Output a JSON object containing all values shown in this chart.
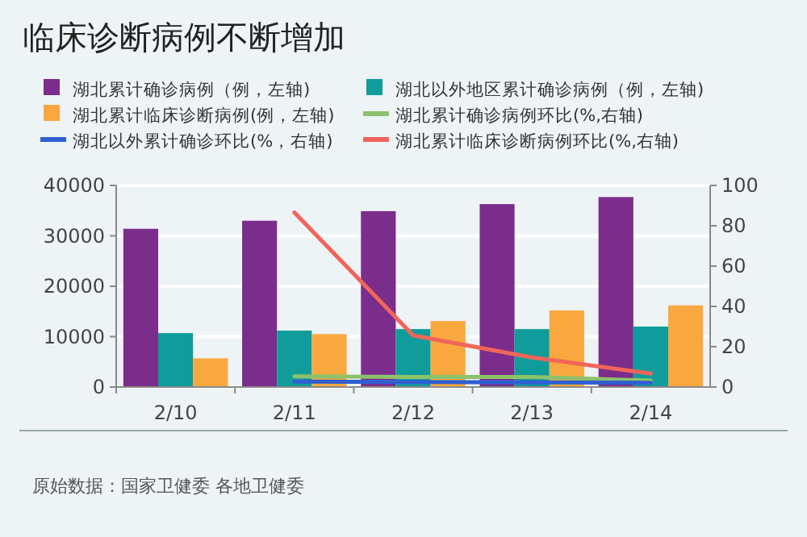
{
  "chart_data": {
    "type": "bar",
    "title": "临床诊断病例不断增加",
    "categories": [
      "2/10",
      "2/11",
      "2/12",
      "2/13",
      "2/14"
    ],
    "series": [
      {
        "name": "湖北累计确诊病例（例，左轴)",
        "color": "#7b2d8b",
        "values": [
          31400,
          33000,
          34900,
          36300,
          37700
        ]
      },
      {
        "name": "湖北以外地区累计确诊病例（例，左轴)",
        "color": "#109c9a",
        "values": [
          10700,
          11200,
          11500,
          11500,
          12000
        ]
      },
      {
        "name": "湖北累计临床诊断病例(例，左轴)",
        "color": "#f9a83f",
        "values": [
          5700,
          10500,
          13100,
          15200,
          16200
        ]
      },
      {
        "name": "湖北累计确诊病例环比(%,右轴)",
        "type": "line",
        "axis": "y2",
        "color": "#8dc26b",
        "values": [
          null,
          5.3,
          5.0,
          5.0,
          3.2
        ]
      },
      {
        "name": "湖北以外累计确诊环比(%，右轴)",
        "type": "line",
        "axis": "y2",
        "color": "#2f5fd0",
        "values": [
          null,
          2.7,
          2.5,
          2.3,
          2.1
        ]
      },
      {
        "name": "湖北累计临床诊断病例环比(%,右轴)",
        "type": "line",
        "axis": "y2",
        "color": "#f0655a",
        "values": [
          null,
          86.6,
          25.6,
          14.7,
          6.7
        ]
      }
    ],
    "ylim": [
      0,
      40000
    ],
    "yticks": [
      0,
      10000,
      20000,
      30000,
      40000
    ],
    "y2lim": [
      0,
      100
    ],
    "y2ticks": [
      0,
      20,
      40,
      60,
      80,
      100
    ],
    "grid": "y",
    "legend": "top",
    "annotations": [
      "原始数据：国家卫健委 各地卫健委"
    ]
  }
}
